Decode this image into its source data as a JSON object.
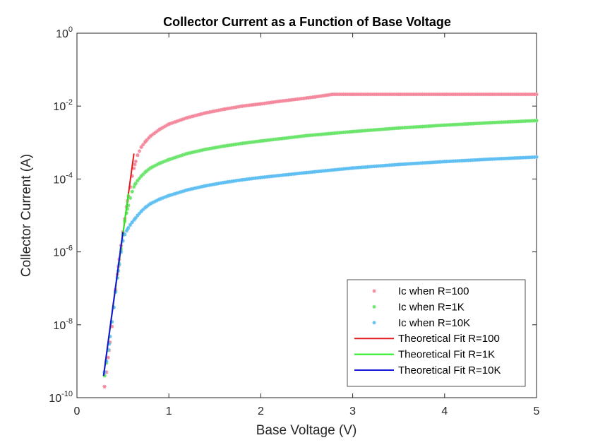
{
  "chart_data": {
    "type": "scatter",
    "title": "Collector Current as a Function of Base Voltage",
    "xlabel": "Base Voltage (V)",
    "ylabel": "Collector Current (A)",
    "xlim": [
      0,
      5
    ],
    "ylim": [
      1e-10,
      1
    ],
    "yscale": "log",
    "grid": false,
    "legend_position": "bottom-right",
    "x_ticks": [
      "0",
      "1",
      "2",
      "3",
      "4",
      "5"
    ],
    "y_ticks": [
      {
        "base": "10",
        "exp": "-10"
      },
      {
        "base": "10",
        "exp": "-8"
      },
      {
        "base": "10",
        "exp": "-6"
      },
      {
        "base": "10",
        "exp": "-4"
      },
      {
        "base": "10",
        "exp": "-2"
      },
      {
        "base": "10",
        "exp": "0"
      }
    ],
    "series": [
      {
        "name": "Ic when R=100",
        "kind": "marker",
        "color": "#f4889c",
        "x": [
          0.3,
          0.32,
          0.35,
          0.38,
          0.4,
          0.42,
          0.45,
          0.48,
          0.5,
          0.52,
          0.55,
          0.58,
          0.6,
          0.63,
          0.66,
          0.7,
          0.75,
          0.8,
          0.9,
          1.0,
          1.2,
          1.4,
          1.6,
          1.8,
          2.0,
          2.2,
          2.4,
          2.6,
          2.78,
          3.0,
          3.5,
          4.0,
          4.5,
          5.0
        ],
        "y": [
          2e-10,
          5e-10,
          2e-09,
          9e-09,
          3e-08,
          9e-08,
          4e-07,
          1.5e-06,
          3.5e-06,
          8e-06,
          2.5e-05,
          6e-05,
          0.00012,
          0.00025,
          0.00045,
          0.00075,
          0.0011,
          0.0015,
          0.0023,
          0.0032,
          0.0048,
          0.0065,
          0.0082,
          0.01,
          0.0115,
          0.0135,
          0.0155,
          0.018,
          0.021,
          0.021,
          0.021,
          0.021,
          0.021,
          0.021
        ]
      },
      {
        "name": "Ic when R=1K",
        "kind": "marker",
        "color": "#6be56b",
        "x": [
          0.3,
          0.32,
          0.35,
          0.38,
          0.4,
          0.42,
          0.45,
          0.48,
          0.5,
          0.52,
          0.55,
          0.58,
          0.6,
          0.63,
          0.66,
          0.7,
          0.75,
          0.8,
          0.9,
          1.0,
          1.2,
          1.4,
          1.6,
          1.8,
          2.0,
          2.5,
          3.0,
          3.5,
          4.0,
          4.5,
          5.0
        ],
        "y": [
          4e-10,
          9e-10,
          3e-09,
          1.2e-08,
          3e-08,
          8e-08,
          3e-07,
          1.2e-06,
          3e-06,
          7e-06,
          1.5e-05,
          3e-05,
          4.5e-05,
          7e-05,
          9e-05,
          0.00012,
          0.00016,
          0.0002,
          0.00027,
          0.00034,
          0.0005,
          0.00065,
          0.0008,
          0.00095,
          0.0011,
          0.00155,
          0.002,
          0.0025,
          0.003,
          0.0035,
          0.004
        ]
      },
      {
        "name": "Ic when R=10K",
        "kind": "marker",
        "color": "#5fbff2",
        "x": [
          0.3,
          0.32,
          0.35,
          0.38,
          0.4,
          0.42,
          0.45,
          0.48,
          0.5,
          0.52,
          0.55,
          0.58,
          0.6,
          0.63,
          0.66,
          0.7,
          0.75,
          0.8,
          0.9,
          1.0,
          1.2,
          1.4,
          1.6,
          1.8,
          2.0,
          2.5,
          3.0,
          3.5,
          4.0,
          4.5,
          5.0
        ],
        "y": [
          5e-10,
          1e-09,
          3e-09,
          1.2e-08,
          3e-08,
          8e-08,
          3e-07,
          1e-06,
          2e-06,
          3e-06,
          4.2e-06,
          5.5e-06,
          6.5e-06,
          8e-06,
          1e-05,
          1.3e-05,
          1.7e-05,
          2.1e-05,
          2.8e-05,
          3.5e-05,
          5e-05,
          6.5e-05,
          8e-05,
          9.5e-05,
          0.00011,
          0.00015,
          0.0002,
          0.00025,
          0.0003,
          0.00035,
          0.0004
        ]
      },
      {
        "name": "Theoretical Fit R=100",
        "kind": "line",
        "color": "#e31a1c",
        "x": [
          0.29,
          0.62
        ],
        "y": [
          4e-10,
          0.0005
        ]
      },
      {
        "name": "Theoretical Fit R=1K",
        "kind": "line",
        "color": "#22ee22",
        "x": [
          0.29,
          0.56
        ],
        "y": [
          4e-10,
          4e-05
        ]
      },
      {
        "name": "Theoretical Fit R=10K",
        "kind": "line",
        "color": "#1515d9",
        "x": [
          0.29,
          0.5
        ],
        "y": [
          4e-10,
          3.5e-06
        ]
      }
    ]
  }
}
